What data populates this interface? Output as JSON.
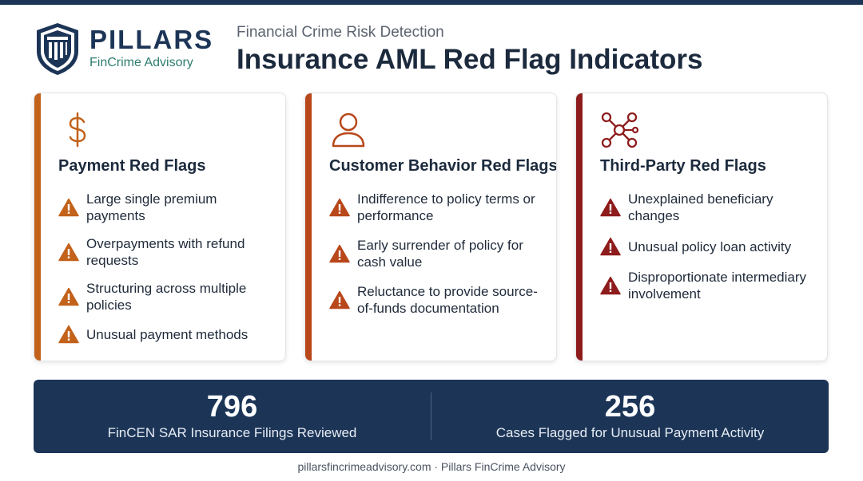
{
  "brand": {
    "name": "PILLARS",
    "tagline": "FinCrime Advisory",
    "color_primary": "#1c3557",
    "color_accent": "#2d7d6e"
  },
  "header": {
    "subtitle": "Financial Crime Risk Detection",
    "title": "Insurance AML Red Flag Indicators"
  },
  "cards": [
    {
      "icon": "dollar-icon",
      "accent_color": "#c2621b",
      "title": "Payment Red Flags",
      "items": [
        {
          "line1": "Large single premium",
          "line2": "payments"
        },
        {
          "line1": "Overpayments with refund",
          "line2": "requests"
        },
        {
          "line1": "Structuring across multiple",
          "line2": "policies"
        },
        {
          "line1": "Unusual payment methods",
          "line2": ""
        }
      ]
    },
    {
      "icon": "person-icon",
      "accent_color": "#b8471a",
      "title": "Customer Behavior Red Flags",
      "items": [
        {
          "line1": "Indifference to policy terms or",
          "line2": "performance"
        },
        {
          "line1": "Early surrender of policy for",
          "line2": "cash value"
        },
        {
          "line1": "Reluctance to provide source-",
          "line2": "of-funds documentation"
        }
      ]
    },
    {
      "icon": "network-icon",
      "accent_color": "#8e1c1c",
      "title": "Third-Party Red Flags",
      "items": [
        {
          "line1": "Unexplained beneficiary",
          "line2": "changes"
        },
        {
          "line1": "Unusual policy loan activity",
          "line2": ""
        },
        {
          "line1": "Disproportionate intermediary",
          "line2": "involvement"
        }
      ]
    }
  ],
  "stats": [
    {
      "value": "796",
      "label": "FinCEN SAR Insurance Filings Reviewed"
    },
    {
      "value": "256",
      "label": "Cases Flagged for Unusual Payment Activity"
    }
  ],
  "footer": {
    "text": "pillarsfincrimeadvisory.com · Pillars FinCrime Advisory"
  }
}
